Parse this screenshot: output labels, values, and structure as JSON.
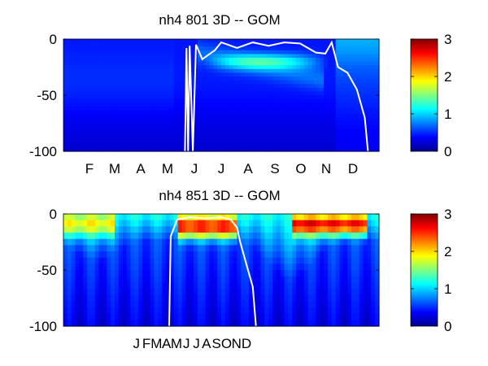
{
  "chart_data": [
    {
      "type": "heatmap",
      "title": "nh4  801 3D   -- GOM",
      "ylim": [
        -100,
        0
      ],
      "yticks": [
        0,
        -50,
        -100
      ],
      "ytick_labels": [
        "0",
        "-50",
        "-100"
      ],
      "x_tick_labels": [
        "F",
        "M",
        "A",
        "M",
        "J",
        "J",
        "A",
        "S",
        "O",
        "N",
        "D"
      ],
      "colorbar": {
        "range": [
          0,
          3
        ],
        "ticks": [
          "3",
          "2",
          "1",
          "0"
        ],
        "colormap": "jet"
      },
      "contour": {
        "color": "#ffffff",
        "note_depth_profile_points": [
          [
            0.385,
            -100
          ],
          [
            0.39,
            -8
          ],
          [
            0.395,
            -100
          ],
          [
            0.4,
            -6
          ],
          [
            0.41,
            -100
          ],
          [
            0.42,
            -5
          ],
          [
            0.44,
            -18
          ],
          [
            0.48,
            -10
          ],
          [
            0.5,
            -3
          ],
          [
            0.55,
            -8
          ],
          [
            0.6,
            -3
          ],
          [
            0.65,
            -6
          ],
          [
            0.7,
            -3
          ],
          [
            0.75,
            -4
          ],
          [
            0.8,
            -12
          ],
          [
            0.83,
            -13
          ],
          [
            0.85,
            -3
          ],
          [
            0.87,
            -25
          ],
          [
            0.9,
            -30
          ],
          [
            0.93,
            -45
          ],
          [
            0.955,
            -70
          ],
          [
            0.965,
            -100
          ]
        ]
      }
    },
    {
      "type": "heatmap",
      "title": "nh4  851 3D   -- GOM",
      "ylim": [
        -100,
        0
      ],
      "yticks": [
        0,
        -50,
        -100
      ],
      "ytick_labels": [
        "0",
        "-50",
        "-100"
      ],
      "x_tick_labels": [
        "J",
        "F",
        "M",
        "A",
        "M",
        "J",
        "J",
        "A",
        "S",
        "O",
        "N",
        "D"
      ],
      "colorbar": {
        "range": [
          0,
          3
        ],
        "ticks": [
          "3",
          "2",
          "1",
          "0"
        ],
        "colormap": "jet"
      },
      "contour": {
        "color": "#ffffff",
        "note_depth_profile_points": [
          [
            0.335,
            -100
          ],
          [
            0.34,
            -20
          ],
          [
            0.36,
            -5
          ],
          [
            0.4,
            -3
          ],
          [
            0.45,
            -4
          ],
          [
            0.5,
            -3
          ],
          [
            0.53,
            -5
          ],
          [
            0.55,
            -12
          ],
          [
            0.56,
            -25
          ],
          [
            0.58,
            -45
          ],
          [
            0.6,
            -65
          ],
          [
            0.61,
            -100
          ]
        ]
      }
    }
  ]
}
